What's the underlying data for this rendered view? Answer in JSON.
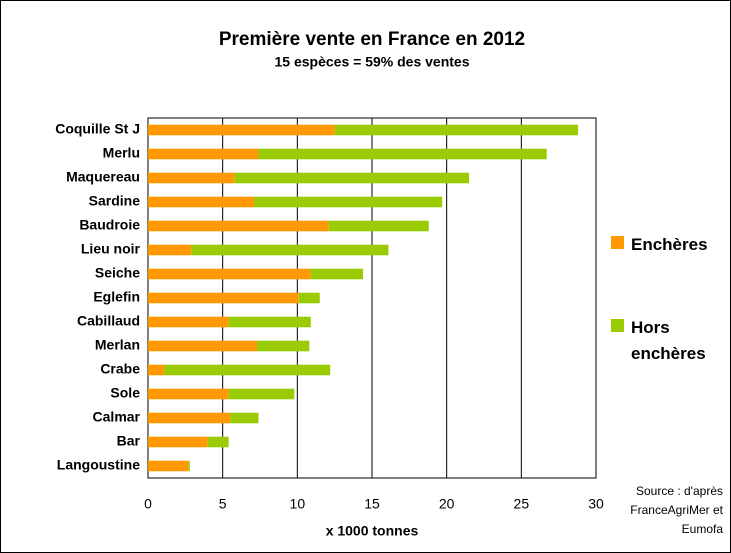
{
  "chart_data": {
    "type": "stacked-barh",
    "title": "Première vente en France en 2012",
    "subtitle": "15 espèces = 59% des ventes",
    "x_label": "x 1000 tonnes",
    "source": "Source : d'après FranceAgriMer et Eumofa",
    "categories": [
      "Coquille St J",
      "Merlu",
      "Maquereau",
      "Sardine",
      "Baudroie",
      "Lieu noir",
      "Seiche",
      "Eglefin",
      "Cabillaud",
      "Merlan",
      "Crabe",
      "Sole",
      "Calmar",
      "Bar",
      "Langoustine"
    ],
    "series": [
      {
        "name": "Enchères",
        "color": "#ff9900",
        "values": [
          12.5,
          7.4,
          5.8,
          7.1,
          12.1,
          2.9,
          10.9,
          10.1,
          5.4,
          7.3,
          1.1,
          5.4,
          5.5,
          4.0,
          2.7
        ]
      },
      {
        "name": "Hors enchères",
        "color": "#99cc00",
        "values": [
          16.3,
          19.3,
          15.7,
          12.6,
          6.7,
          13.2,
          3.5,
          1.4,
          5.5,
          3.5,
          11.1,
          4.4,
          1.9,
          1.4,
          0.1
        ]
      }
    ],
    "xlim": [
      0,
      30
    ],
    "xticks": [
      0,
      5,
      10,
      15,
      20,
      25,
      30
    ],
    "grid": true
  }
}
